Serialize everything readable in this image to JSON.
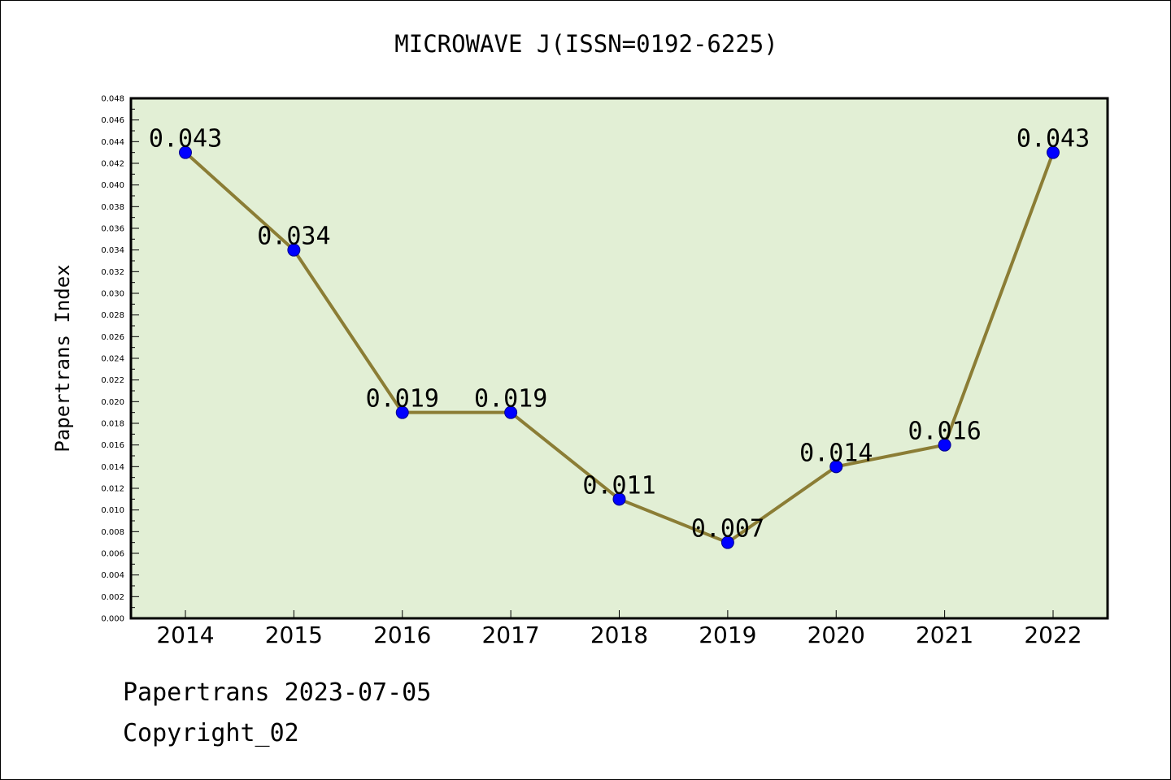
{
  "chart_data": {
    "type": "line",
    "title": "MICROWAVE J(ISSN=0192-6225)",
    "xlabel": "",
    "ylabel": "Papertrans Index",
    "categories": [
      "2014",
      "2015",
      "2016",
      "2017",
      "2018",
      "2019",
      "2020",
      "2021",
      "2022"
    ],
    "series": [
      {
        "values": [
          0.043,
          0.034,
          0.019,
          0.019,
          0.011,
          0.007,
          0.014,
          0.016,
          0.043
        ],
        "data_labels": [
          "0.043",
          "0.034",
          "0.019",
          "0.019",
          "0.011",
          "0.007",
          "0.014",
          "0.016",
          "0.043"
        ],
        "line_color": "#8b7d35",
        "marker_color": "#0000ff"
      }
    ],
    "ylim": [
      0,
      0.048
    ],
    "yticks": [
      "0.000",
      "0.002",
      "0.004",
      "0.006",
      "0.008",
      "0.010",
      "0.012",
      "0.014",
      "0.016",
      "0.018",
      "0.020",
      "0.022",
      "0.024",
      "0.026",
      "0.028",
      "0.030",
      "0.032",
      "0.034",
      "0.036",
      "0.038",
      "0.040",
      "0.042",
      "0.044",
      "0.046",
      "0.048"
    ],
    "grid": false,
    "plot_background": "#e2efd5"
  },
  "footer": {
    "line1": "Papertrans 2023-07-05",
    "line2": "Copyright_02"
  }
}
